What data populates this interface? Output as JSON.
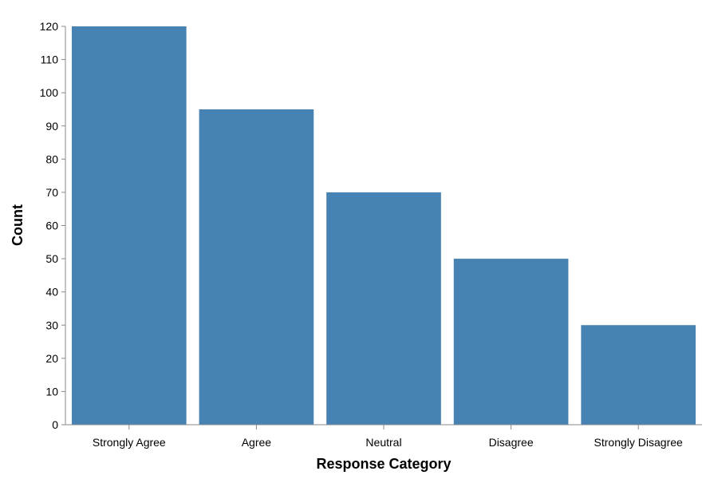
{
  "chart_data": {
    "type": "bar",
    "categories": [
      "Strongly Agree",
      "Agree",
      "Neutral",
      "Disagree",
      "Strongly Disagree"
    ],
    "values": [
      120,
      95,
      70,
      50,
      30
    ],
    "xlabel": "Response Category",
    "ylabel": "Count",
    "ylim": [
      0,
      120
    ],
    "yticks": [
      0,
      10,
      20,
      30,
      40,
      50,
      60,
      70,
      80,
      90,
      100,
      110,
      120
    ],
    "grid": false,
    "bar_color": "#4682b4",
    "axis_color": "#888888"
  }
}
